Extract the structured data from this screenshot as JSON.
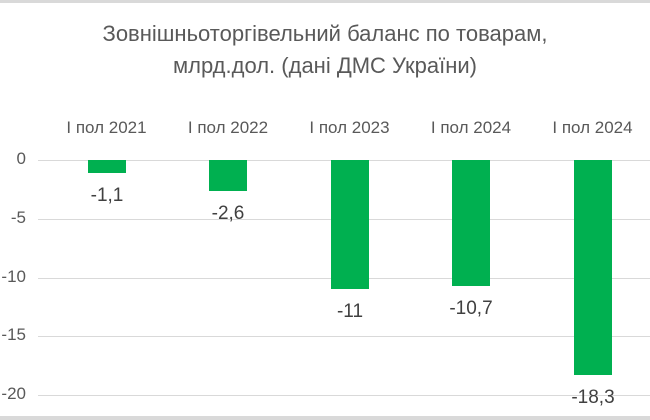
{
  "chart_data": {
    "type": "bar",
    "title": "Зовнішньоторгівельний баланс по товарам, млрд.дол.  (дані ДМС України)",
    "title_lines": [
      "Зовнішньоторгівельний баланс по товарам,",
      "млрд.дол.  (дані ДМС України)"
    ],
    "categories": [
      "I пол 2021",
      "I пол 2022",
      "I пол 2023",
      "I пол 2024",
      "I пол 2024"
    ],
    "values": [
      -1.1,
      -2.6,
      -11,
      -10.7,
      -18.3
    ],
    "data_labels": [
      "-1,1",
      "-2,6",
      "-11",
      "-10,7",
      "-18,3"
    ],
    "xlabel": "",
    "ylabel": "",
    "ylim": [
      -20,
      0
    ],
    "yticks": [
      0,
      -5,
      -10,
      -15,
      -20
    ],
    "ytick_labels": [
      "0",
      "-5",
      "-10",
      "-15",
      "-20"
    ],
    "grid": true,
    "legend": "none",
    "x_axis_position": "top",
    "bar_color": "#00B050"
  }
}
